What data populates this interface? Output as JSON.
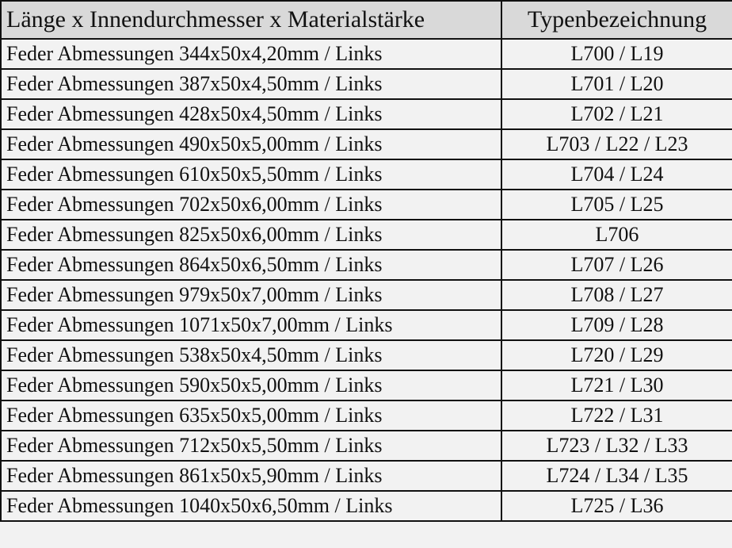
{
  "header": {
    "col1": "Länge x Innendurchmesser x Materialstärke",
    "col2": "Typenbezeichnung"
  },
  "rows": [
    {
      "dim": "Feder Abmessungen 344x50x4,20mm / Links",
      "type": "L700 / L19"
    },
    {
      "dim": "Feder Abmessungen 387x50x4,50mm / Links",
      "type": "L701 / L20"
    },
    {
      "dim": "Feder Abmessungen 428x50x4,50mm / Links",
      "type": "L702 / L21"
    },
    {
      "dim": "Feder Abmessungen 490x50x5,00mm / Links",
      "type": "L703 / L22 / L23"
    },
    {
      "dim": "Feder Abmessungen 610x50x5,50mm / Links",
      "type": "L704 / L24"
    },
    {
      "dim": "Feder Abmessungen 702x50x6,00mm / Links",
      "type": "L705 / L25"
    },
    {
      "dim": "Feder Abmessungen 825x50x6,00mm / Links",
      "type": "L706"
    },
    {
      "dim": "Feder Abmessungen 864x50x6,50mm / Links",
      "type": "L707 / L26"
    },
    {
      "dim": "Feder Abmessungen 979x50x7,00mm / Links",
      "type": "L708 / L27"
    },
    {
      "dim": "Feder Abmessungen 1071x50x7,00mm / Links",
      "type": "L709 / L28"
    },
    {
      "dim": "Feder Abmessungen 538x50x4,50mm / Links",
      "type": "L720 / L29"
    },
    {
      "dim": "Feder Abmessungen 590x50x5,00mm / Links",
      "type": "L721 / L30"
    },
    {
      "dim": "Feder Abmessungen 635x50x5,00mm / Links",
      "type": "L722 / L31"
    },
    {
      "dim": "Feder Abmessungen 712x50x5,50mm / Links",
      "type": "L723 / L32 / L33"
    },
    {
      "dim": "Feder Abmessungen 861x50x5,90mm / Links",
      "type": "L724 / L34 / L35"
    },
    {
      "dim": "Feder Abmessungen 1040x50x6,50mm / Links",
      "type": "L725 / L36"
    }
  ]
}
